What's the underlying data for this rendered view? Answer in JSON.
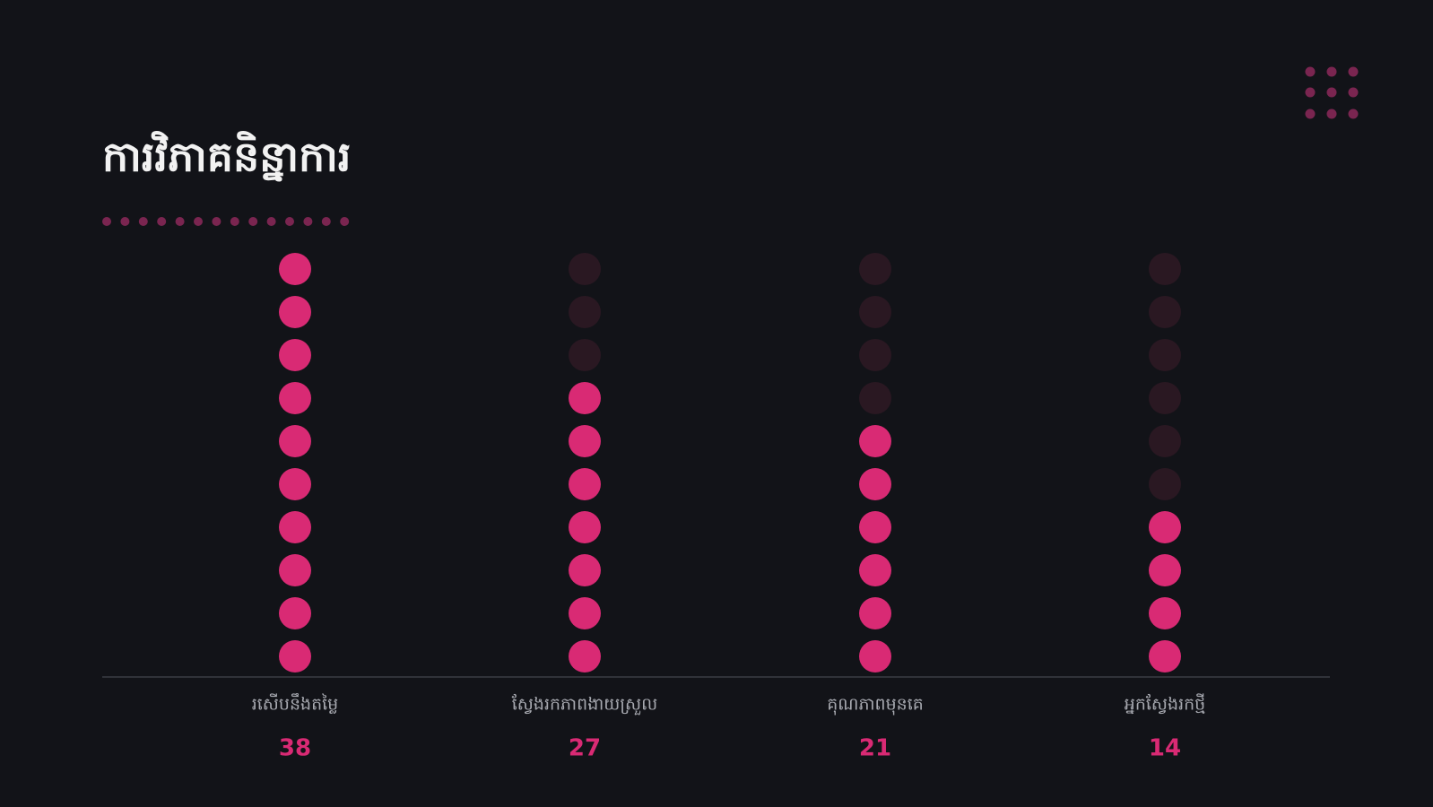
{
  "chart_data": {
    "type": "dot-column",
    "title": "ការវិភាគនិន្នាការ",
    "categories": [
      "រសើបនឹងតម្លៃ",
      "ស្វែងរកភាពងាយស្រួល",
      "គុណភាពមុនគេ",
      "អ្នកស្វែងរកថ្មី"
    ],
    "values": [
      38,
      27,
      21,
      14
    ],
    "color": "#d92a74"
  }
}
